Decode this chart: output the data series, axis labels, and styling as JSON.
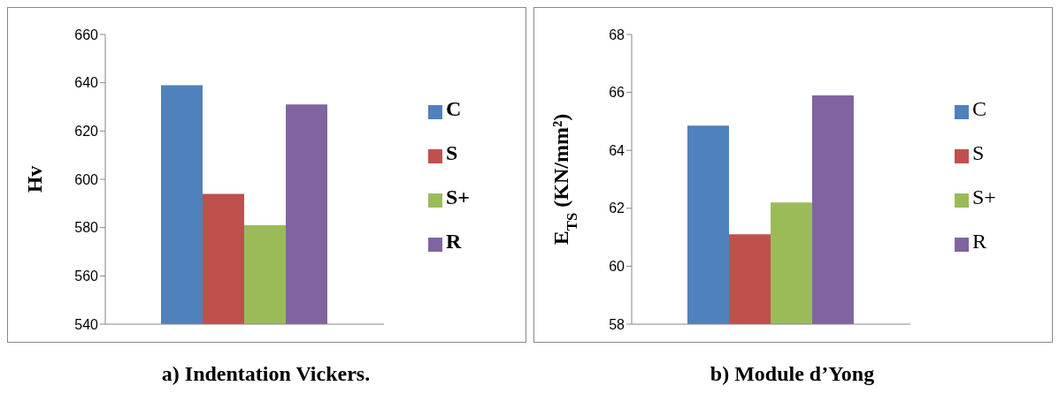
{
  "chart_data": [
    {
      "type": "bar",
      "title": "a) Indentation Vickers.",
      "ylabel": "Hv",
      "categories": [
        null
      ],
      "series": [
        {
          "name": "C",
          "color": "#4f81bd",
          "values": [
            639
          ]
        },
        {
          "name": "S",
          "color": "#c0504d",
          "values": [
            594
          ]
        },
        {
          "name": "S+",
          "color": "#9bbb59",
          "values": [
            581
          ]
        },
        {
          "name": "R",
          "color": "#8064a2",
          "values": [
            631
          ]
        }
      ],
      "ylim": [
        540,
        660
      ],
      "yticks": [
        540,
        560,
        580,
        600,
        620,
        640,
        660
      ],
      "grid": false,
      "legend": "right"
    },
    {
      "type": "bar",
      "title": "b) Module d’Yong",
      "ylabel": "E$_{TS}$ (KN/mm²)",
      "categories": [
        null
      ],
      "series": [
        {
          "name": "C",
          "color": "#4f81bd",
          "values": [
            64.85
          ]
        },
        {
          "name": "S",
          "color": "#c0504d",
          "values": [
            61.1
          ]
        },
        {
          "name": "S+",
          "color": "#9bbb59",
          "values": [
            62.2
          ]
        },
        {
          "name": "R",
          "color": "#8064a2",
          "values": [
            65.9
          ]
        }
      ],
      "ylim": [
        58,
        68
      ],
      "yticks": [
        58,
        60,
        62,
        64,
        66,
        68
      ],
      "grid": false,
      "legend": "right"
    }
  ]
}
